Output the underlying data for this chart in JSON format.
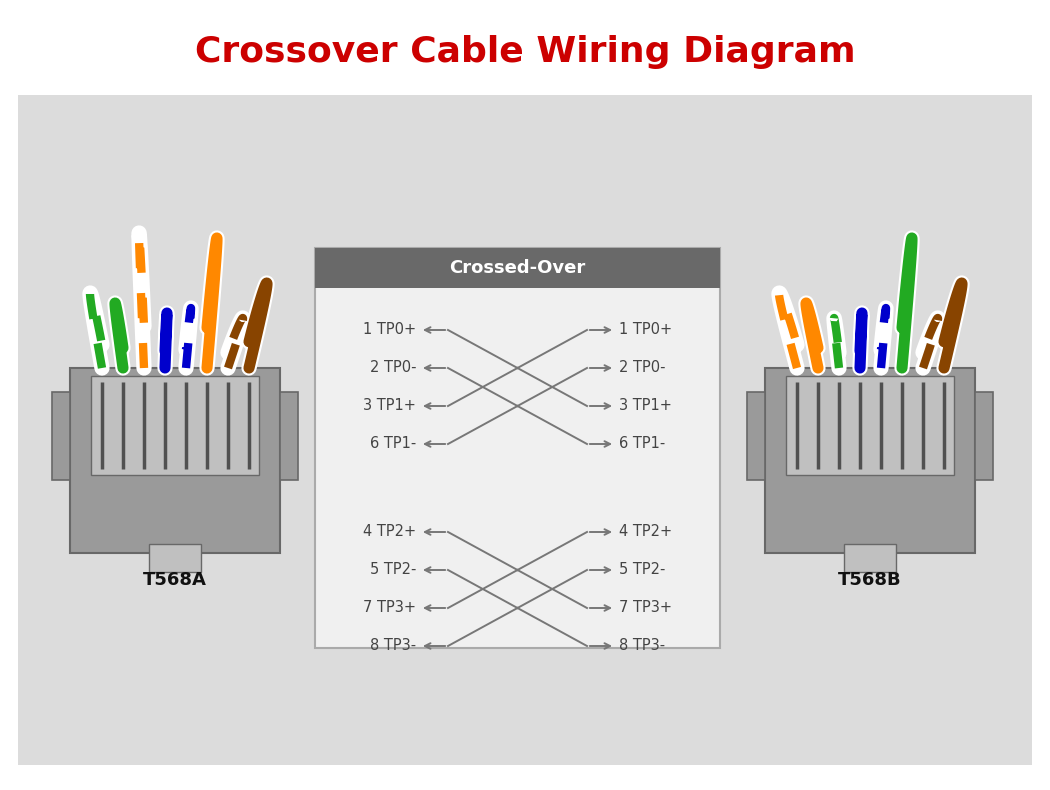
{
  "title": "Crossover Cable Wiring Diagram",
  "title_color": "#cc0000",
  "bg_color": "#dcdcdc",
  "left_label": "T568A",
  "right_label": "T568B",
  "crossed_over_label": "Crossed-Over",
  "box_header_color": "#696969",
  "box_bg_color": "#f0f0f0",
  "text_color": "#555555",
  "line_color": "#777777",
  "T568A_pairs": [
    {
      "solid": "#22aa22",
      "stripe_on_white": "#22aa22"
    },
    {
      "solid": "#ff8800",
      "stripe_on_white": "#ff8800"
    },
    {
      "solid": "#0000cc",
      "stripe_on_white": "#0000cc"
    },
    {
      "solid": "#884400",
      "stripe_on_white": "#884400"
    }
  ],
  "T568B_pairs": [
    {
      "solid": "#ff8800",
      "stripe_on_white": "#ff8800"
    },
    {
      "solid": "#22aa22",
      "stripe_on_white": "#22aa22"
    },
    {
      "solid": "#0000cc",
      "stripe_on_white": "#0000cc"
    },
    {
      "solid": "#884400",
      "stripe_on_white": "#884400"
    }
  ],
  "group1_rows": [
    "1 TP0+",
    "2 TP0-",
    "3 TP1+",
    "6 TP1-"
  ],
  "group2_rows": [
    "4 TP2+",
    "5 TP2-",
    "7 TP3+",
    "8 TP3-"
  ],
  "group1_cross": [
    2,
    3,
    0,
    1
  ],
  "group2_cross": [
    2,
    3,
    0,
    1
  ]
}
